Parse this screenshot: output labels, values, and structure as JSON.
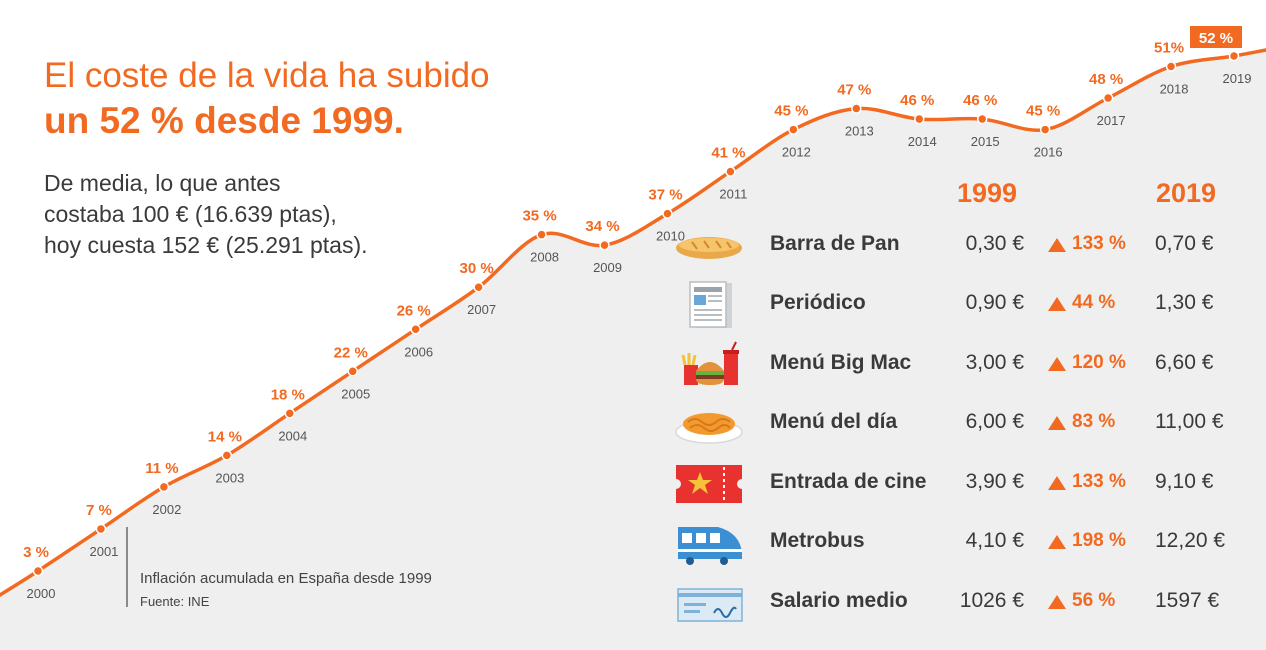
{
  "headline": {
    "line1": "El coste de la vida ha subido",
    "line2": "un 52 % desde 1999."
  },
  "subtitle": [
    "De media, lo que antes",
    "costaba 100 € (16.639 ptas),",
    "hoy cuesta 152 € (25.291 ptas)."
  ],
  "source": {
    "caption": "Inflación acumulada en España desde 1999",
    "credit": "Fuente: INE"
  },
  "colors": {
    "accent": "#f26a21",
    "background_area": "#efefef",
    "text": "#3a3a3a"
  },
  "chart_data": {
    "type": "line",
    "title": "Inflación acumulada en España desde 1999",
    "x": [
      "2000",
      "2001",
      "2002",
      "2003",
      "2004",
      "2005",
      "2006",
      "2007",
      "2008",
      "2009",
      "2010",
      "2011",
      "2012",
      "2013",
      "2014",
      "2015",
      "2016",
      "2017",
      "2018",
      "2019"
    ],
    "series": [
      {
        "values": [
          3,
          7,
          11,
          14,
          18,
          22,
          26,
          30,
          35,
          34,
          37,
          41,
          45,
          47,
          46,
          46,
          45,
          48,
          51,
          52
        ],
        "labels": [
          "3 %",
          "7 %",
          "11 %",
          "14 %",
          "18 %",
          "22 %",
          "26 %",
          "30 %",
          "35 %",
          "34 %",
          "37 %",
          "41 %",
          "45 %",
          "47 %",
          "46 %",
          "46 %",
          "45 %",
          "48 %",
          "51%",
          "52 %"
        ]
      }
    ],
    "highlight_last": true,
    "grid": false,
    "legend": "none"
  },
  "table": {
    "header_1999": "1999",
    "header_2019": "2019",
    "rows": [
      {
        "icon": "bread-icon",
        "name": "Barra de Pan",
        "v1999": "0,30 €",
        "change": "133 %",
        "v2019": "0,70 €"
      },
      {
        "icon": "newspaper-icon",
        "name": "Periódico",
        "v1999": "0,90 €",
        "change": "44 %",
        "v2019": "1,30 €"
      },
      {
        "icon": "burger-meal-icon",
        "name": "Menú Big Mac",
        "v1999": "3,00 €",
        "change": "120 %",
        "v2019": "6,60 €"
      },
      {
        "icon": "pasta-plate-icon",
        "name": "Menú del día",
        "v1999": "6,00 €",
        "change": "83 %",
        "v2019": "11,00 €"
      },
      {
        "icon": "cinema-ticket-icon",
        "name": "Entrada de cine",
        "v1999": "3,90 €",
        "change": "133 %",
        "v2019": "9,10 €"
      },
      {
        "icon": "train-icon",
        "name": "Metrobus",
        "v1999": "4,10 €",
        "change": "198 %",
        "v2019": "12,20 €"
      },
      {
        "icon": "paycheck-icon",
        "name": "Salario medio",
        "v1999": "1026 €",
        "change": "56 %",
        "v2019": "1597 €"
      }
    ]
  }
}
